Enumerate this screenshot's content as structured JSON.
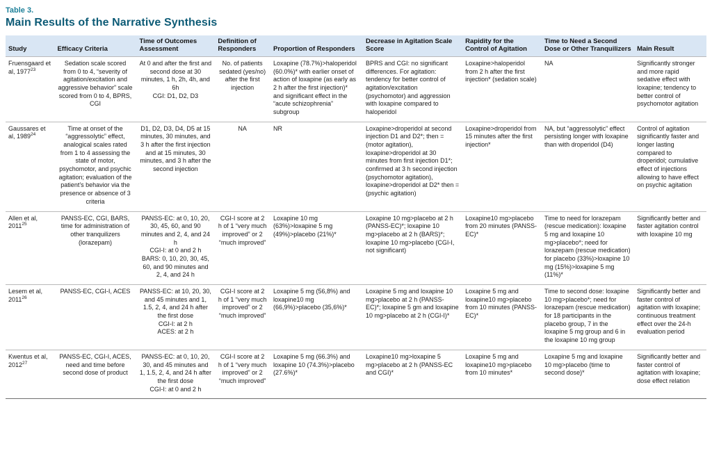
{
  "page": {
    "table_label": "Table 3.",
    "title": "Main Results of the Narrative Synthesis"
  },
  "colors": {
    "label_teal": "#1d8099",
    "title_teal": "#0d5b76",
    "header_bg": "#d9e6f4"
  },
  "table": {
    "columns": [
      "Study",
      "Efficacy Criteria",
      "Time of Outcomes Assessment",
      "Definition of Responders",
      "Proportion of Responders",
      "Decrease in Agitation Scale Score",
      "Rapidity for the Control of Agitation",
      "Time to Need a Second Dose or Other Tranquilizers",
      "Main Result"
    ],
    "rows": [
      {
        "study": "Fruensgaard et al, 1977",
        "ref": "23",
        "cells": [
          "Sedation scale scored from 0 to 4, “severity of agitation/excitation and aggressive behavior” scale scored from 0 to 4, BPRS, CGI",
          "At 0 and after the first and second dose at 30 minutes, 1 h, 2h, 4h, and 6h\nCGI: D1, D2, D3",
          "No. of patients sedated (yes/no) after the first injection",
          "Loxapine (78.7%)>haloperidol (60.0%)* with earlier onset of action of loxapine (as early as 2 h after the first injection)* and significant effect in the “acute schizophrenia” subgroup",
          "BPRS and CGI: no significant differences. For agitation: tendency for better control of agitation/excitation (psychomotor) and aggression with loxapine compared to haloperidol",
          "Loxapine>haloperidol from 2 h after the first injection* (sedation scale)",
          "NA",
          "Significantly stronger and more rapid sedative effect with loxapine; tendency to better control of psychomotor agitation"
        ]
      },
      {
        "study": "Gaussares et al, 1989",
        "ref": "24",
        "cells": [
          "Time at onset of the “aggressolytic” effect, analogical scales rated from 1 to 4 assessing the state of motor, psychomotor, and psychic agitation; evaluation of the patient’s behavior via the presence or absence of 3 criteria",
          "D1, D2, D3, D4, D5 at 15 minutes, 30 minutes, and 3 h after the first injection and at 15 minutes, 30 minutes, and 3 h after the second injection",
          "NA",
          "NR",
          "Loxapine>droperidol at second injection D1 and D2*; then = (motor agitation), loxapine>droperidol at 30 minutes from first injection D1*; confirmed at 3 h second injection (psychomotor agitation), loxapine>droperidol at D2* then = (psychic agitation)",
          "Loxapine>droperidol from 15 minutes after the first injection*",
          "NA, but “aggressolytic” effect persisting longer with loxapine than with droperidol (D4)",
          "Control of agitation significantly faster and longer lasting compared to droperidol; cumulative effect of injections allowing to have effect on psychic agitation"
        ]
      },
      {
        "study": "Allen et al, 2011",
        "ref": "25",
        "cells": [
          "PANSS-EC, CGI, BARS, time for administration of other tranquilizers (lorazepam)",
          "PANSS-EC: at 0, 10, 20, 30, 45, 60, and 90 minutes and 2, 4, and 24 h\nCGI-I: at 0 and 2 h\nBARS: 0, 10, 20, 30, 45, 60, and 90 minutes and 2, 4, and 24 h",
          "CGI-I score at 2 h of 1 “very much improved” or 2 “much improved”",
          "Loxapine 10 mg (63%)>loxapine 5 mg (49%)>placebo (21%)*",
          "Loxapine 10 mg>placebo at 2 h (PANSS-EC)*; loxapine 10 mg>placebo at 2 h (BARS)*; loxapine 10 mg>placebo (CGI-I, not significant)",
          "Loxapine10 mg>placebo from 20 minutes (PANSS-EC)*",
          "Time to need for lorazepam (rescue medication): loxapine 5 mg and loxapine 10 mg>placebo*; need for lorazepam (rescue medication) for placebo (33%)>loxapine 10 mg (15%)>loxapine 5 mg (11%)*",
          "Significantly better and faster agitation control with loxapine 10 mg"
        ]
      },
      {
        "study": "Lesem et al, 2011",
        "ref": "26",
        "cells": [
          "PANSS-EC, CGI-I, ACES",
          "PANSS-EC: at 10, 20, 30, and 45 minutes and 1, 1.5, 2, 4, and 24 h after the first dose\nCGI-I: at 2 h\nACES: at 2 h",
          "CGI-I score at 2 h of 1 “very much improved” or 2 “much improved”",
          "Loxapine 5 mg (56,8%) and loxapine10 mg (66,9%)>placebo (35,6%)*",
          "Loxapine 5 mg and loxapine 10 mg>placebo at 2 h (PANSS-EC)*; loxapine 5 gm and loxapine 10 mg>placebo at 2 h (CGI-I)*",
          "Loxapine 5 mg and loxapine10 mg>placebo from 10 minutes (PANSS-EC)*",
          "Time to second dose: loxapine 10 mg>placebo*; need for lorazepam (rescue medication) for 18 participants in the placebo group, 7 in the loxapine 5 mg group and 6 in the loxapine 10 mg group",
          "Significantly better and faster control of agitation with loxapine; continuous treatment effect over the 24-h evaluation period"
        ]
      },
      {
        "study": "Kwentus et al, 2012",
        "ref": "27",
        "cells": [
          "PANSS-EC, CGI-I, ACES, need and time before second dose of product",
          "PANSS-EC: at 0, 10, 20, 30, and 45 minutes and 1, 1.5, 2, 4, and 24 h after the first dose\nCGI-I: at 0 and 2 h",
          "CGI-I score at 2 h of 1 “very much improved” or 2 “much improved”",
          "Loxapine 5 mg (66.3%) and loxapine 10 (74.3%)>placebo (27.6%)*",
          "Loxapine10 mg>loxapine 5 mg>placebo at 2 h (PANSS-EC and CGI)*",
          "Loxapine 5 mg and loxapine10 mg>placebo from 10 minutes*",
          "Loxapine 5 mg and loxapine 10 mg>placebo (time to second dose)*",
          "Significantly better and faster control of agitation with loxapine; dose effect relation"
        ]
      }
    ]
  }
}
